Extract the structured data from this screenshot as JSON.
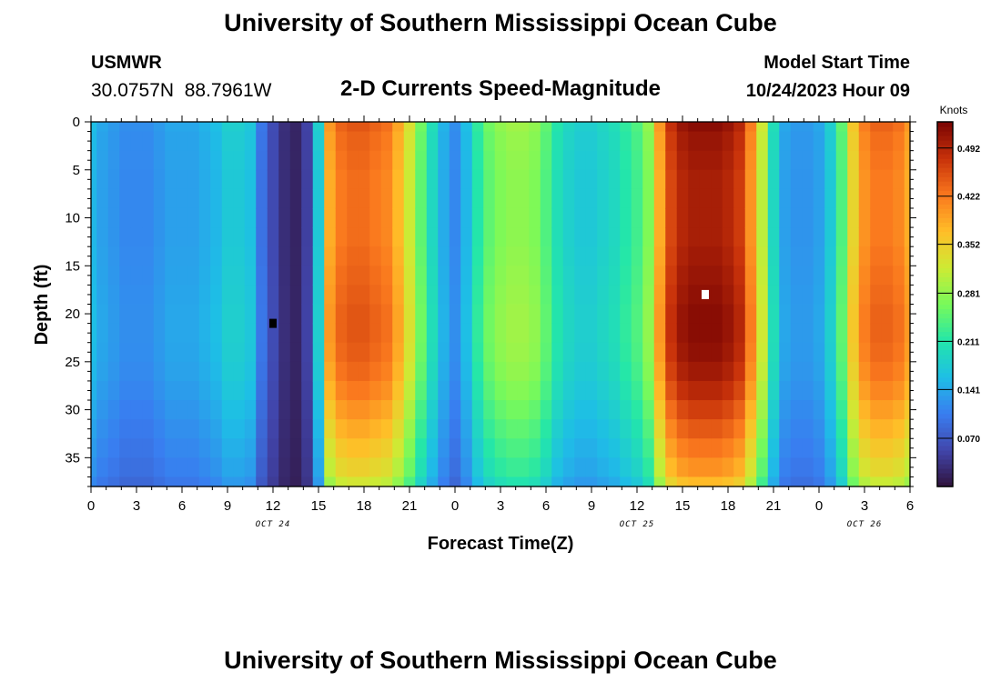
{
  "header": {
    "title": "University of Southern Mississippi Ocean Cube",
    "station": "USMWR",
    "coords": "30.0757N  88.7961W",
    "subtitle": "2-D Currents Speed-Magnitude",
    "model_label": "Model Start Time",
    "model_time": "10/24/2023 Hour 09"
  },
  "footer": {
    "title": "University of Southern Mississippi Ocean Cube"
  },
  "chart_data": {
    "type": "heatmap",
    "title": "2-D Currents Speed-Magnitude",
    "xlabel": "Forecast Time(Z)",
    "ylabel": "Depth (ft)",
    "x_ticks": [
      {
        "hours": 0,
        "label": "0"
      },
      {
        "hours": 3,
        "label": "3"
      },
      {
        "hours": 6,
        "label": "6"
      },
      {
        "hours": 9,
        "label": "9"
      },
      {
        "hours": 12,
        "label": "12"
      },
      {
        "hours": 15,
        "label": "15"
      },
      {
        "hours": 18,
        "label": "18"
      },
      {
        "hours": 21,
        "label": "21"
      },
      {
        "hours": 24,
        "label": "0"
      },
      {
        "hours": 27,
        "label": "3"
      },
      {
        "hours": 30,
        "label": "6"
      },
      {
        "hours": 33,
        "label": "9"
      },
      {
        "hours": 36,
        "label": "12"
      },
      {
        "hours": 39,
        "label": "15"
      },
      {
        "hours": 42,
        "label": "18"
      },
      {
        "hours": 45,
        "label": "21"
      },
      {
        "hours": 48,
        "label": "0"
      },
      {
        "hours": 51,
        "label": "3"
      },
      {
        "hours": 54,
        "label": "6"
      }
    ],
    "date_labels": [
      {
        "hours": 12,
        "label": "OCT 24"
      },
      {
        "hours": 36,
        "label": "OCT 25"
      },
      {
        "hours": 51,
        "label": "OCT 26"
      }
    ],
    "x_range_hours": [
      0,
      54
    ],
    "y_ticks": [
      0,
      5,
      10,
      15,
      20,
      25,
      30,
      35
    ],
    "y_range_ft": [
      0,
      38
    ],
    "colorbar": {
      "unit": "Knots",
      "ticks": [
        "0.070",
        "0.141",
        "0.211",
        "0.281",
        "0.352",
        "0.422",
        "0.492"
      ],
      "range": [
        0.0,
        0.53
      ]
    },
    "markers": [
      {
        "kind": "min",
        "hours": 12.0,
        "depth_ft": 21,
        "color": "#000000"
      },
      {
        "kind": "max",
        "hours": 40.5,
        "depth_ft": 18,
        "color": "#ffffff"
      }
    ],
    "grid_hours": [
      0,
      0.75,
      1.5,
      2.25,
      3,
      3.75,
      4.5,
      5.25,
      6,
      6.75,
      7.5,
      8.25,
      9,
      9.75,
      10.5,
      11.25,
      12,
      12.75,
      13.5,
      14.25,
      15,
      15.75,
      16.5,
      17.25,
      18,
      18.75,
      19.5,
      20.25,
      21,
      21.75,
      22.5,
      23.25,
      24,
      24.75,
      25.5,
      26.25,
      27,
      27.75,
      28.5,
      29.25,
      30,
      30.75,
      31.5,
      32.25,
      33,
      33.75,
      34.5,
      35.25,
      36,
      36.75,
      37.5,
      38.25,
      39,
      39.75,
      40.5,
      41.25,
      42,
      42.75,
      43.5,
      44.25,
      45,
      45.75,
      46.5,
      47.25,
      48,
      48.75,
      49.5,
      50.25,
      51,
      51.75,
      52.5,
      53.25,
      54
    ],
    "grid_depths_ft": [
      0,
      2,
      4,
      6,
      8,
      10,
      12,
      14,
      16,
      18,
      20,
      22,
      24,
      26,
      28,
      30,
      32,
      34,
      36,
      38
    ],
    "profile_speeds_knots": [
      0.16,
      0.14,
      0.13,
      0.12,
      0.12,
      0.12,
      0.13,
      0.14,
      0.14,
      0.14,
      0.15,
      0.16,
      0.18,
      0.18,
      0.17,
      0.1,
      0.06,
      0.03,
      0.02,
      0.05,
      0.18,
      0.4,
      0.44,
      0.45,
      0.45,
      0.44,
      0.43,
      0.39,
      0.33,
      0.26,
      0.2,
      0.15,
      0.12,
      0.16,
      0.22,
      0.26,
      0.28,
      0.29,
      0.29,
      0.28,
      0.25,
      0.21,
      0.19,
      0.18,
      0.18,
      0.19,
      0.2,
      0.22,
      0.24,
      0.28,
      0.4,
      0.48,
      0.51,
      0.52,
      0.52,
      0.52,
      0.51,
      0.49,
      0.42,
      0.32,
      0.2,
      0.14,
      0.13,
      0.13,
      0.14,
      0.18,
      0.25,
      0.36,
      0.42,
      0.44,
      0.44,
      0.43,
      0.4
    ],
    "depth_modulation_by_depth_ft": [
      1.0,
      0.98,
      0.97,
      0.96,
      0.96,
      0.96,
      0.96,
      0.97,
      0.98,
      0.99,
      1.0,
      1.0,
      0.99,
      0.97,
      0.94,
      0.9,
      0.86,
      0.82,
      0.78,
      0.72
    ]
  }
}
